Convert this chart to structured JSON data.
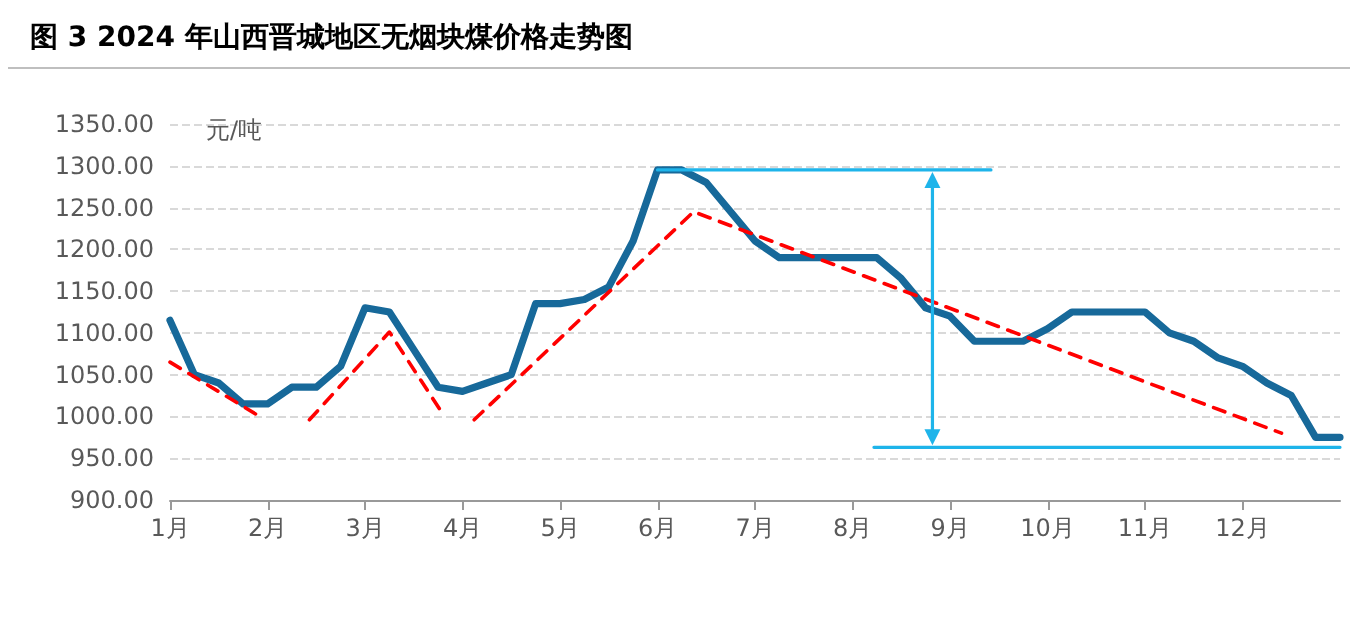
{
  "chart_data": {
    "type": "line",
    "title": "图 3 2024 年山西晋城地区无烟块煤价格走势图",
    "ylabel": "元/吨",
    "xlim": [
      1,
      13
    ],
    "xticks": [
      {
        "value": 1,
        "label": "1月"
      },
      {
        "value": 2,
        "label": "2月"
      },
      {
        "value": 3,
        "label": "3月"
      },
      {
        "value": 4,
        "label": "4月"
      },
      {
        "value": 5,
        "label": "5月"
      },
      {
        "value": 6,
        "label": "6月"
      },
      {
        "value": 7,
        "label": "7月"
      },
      {
        "value": 8,
        "label": "8月"
      },
      {
        "value": 9,
        "label": "9月"
      },
      {
        "value": 10,
        "label": "10月"
      },
      {
        "value": 11,
        "label": "11月"
      },
      {
        "value": 12,
        "label": "12月"
      }
    ],
    "ylim": [
      900,
      1350
    ],
    "yticks": [
      {
        "value": 900,
        "label": "900.00"
      },
      {
        "value": 950,
        "label": "950.00"
      },
      {
        "value": 1000,
        "label": "1000.00"
      },
      {
        "value": 1050,
        "label": "1050.00"
      },
      {
        "value": 1100,
        "label": "1100.00"
      },
      {
        "value": 1150,
        "label": "1150.00"
      },
      {
        "value": 1200,
        "label": "1200.00"
      },
      {
        "value": 1250,
        "label": "1250.00"
      },
      {
        "value": 1300,
        "label": "1300.00"
      },
      {
        "value": 1350,
        "label": "1350.00"
      }
    ],
    "grid": "y",
    "series": [
      {
        "color": "#17699a",
        "marker": "none",
        "line_style": "solid",
        "x": [
          1,
          1.25,
          1.5,
          1.75,
          2,
          2.25,
          2.5,
          2.75,
          3,
          3.25,
          3.5,
          3.75,
          4,
          4.25,
          4.5,
          4.75,
          5,
          5.25,
          5.5,
          5.75,
          6,
          6.25,
          6.5,
          6.75,
          7,
          7.25,
          7.5,
          7.75,
          8,
          8.25,
          8.5,
          8.75,
          9,
          9.25,
          9.5,
          9.75,
          10,
          10.25,
          10.5,
          10.75,
          11,
          11.25,
          11.5,
          11.75,
          12,
          12.25,
          12.5,
          12.75,
          13
        ],
        "values": [
          1115,
          1050,
          1040,
          1015,
          1015,
          1035,
          1035,
          1060,
          1130,
          1125,
          1080,
          1035,
          1030,
          1040,
          1050,
          1135,
          1135,
          1140,
          1155,
          1210,
          1295,
          1295,
          1280,
          1245,
          1210,
          1190,
          1190,
          1190,
          1190,
          1190,
          1165,
          1130,
          1120,
          1090,
          1090,
          1090,
          1105,
          1125,
          1125,
          1125,
          1125,
          1100,
          1090,
          1070,
          1060,
          1040,
          1025,
          975,
          975
        ]
      },
      {
        "color": "#ff0000",
        "marker": "none",
        "line_style": "dashed",
        "x": [
          1,
          1.92,
          2.2,
          2.43,
          3.25,
          3.77,
          3.95,
          4.12,
          6.37,
          12.4
        ],
        "values": [
          1065,
          1000,
          null,
          996,
          1101,
          1008,
          null,
          996,
          1245,
          980
        ]
      },
      {
        "color": "#1eb4ea",
        "marker": "none",
        "line_style": "solid",
        "x": [
          6,
          9.42,
          null,
          8.22,
          13
        ],
        "values": [
          1295,
          1295,
          null,
          963,
          963
        ]
      }
    ]
  }
}
